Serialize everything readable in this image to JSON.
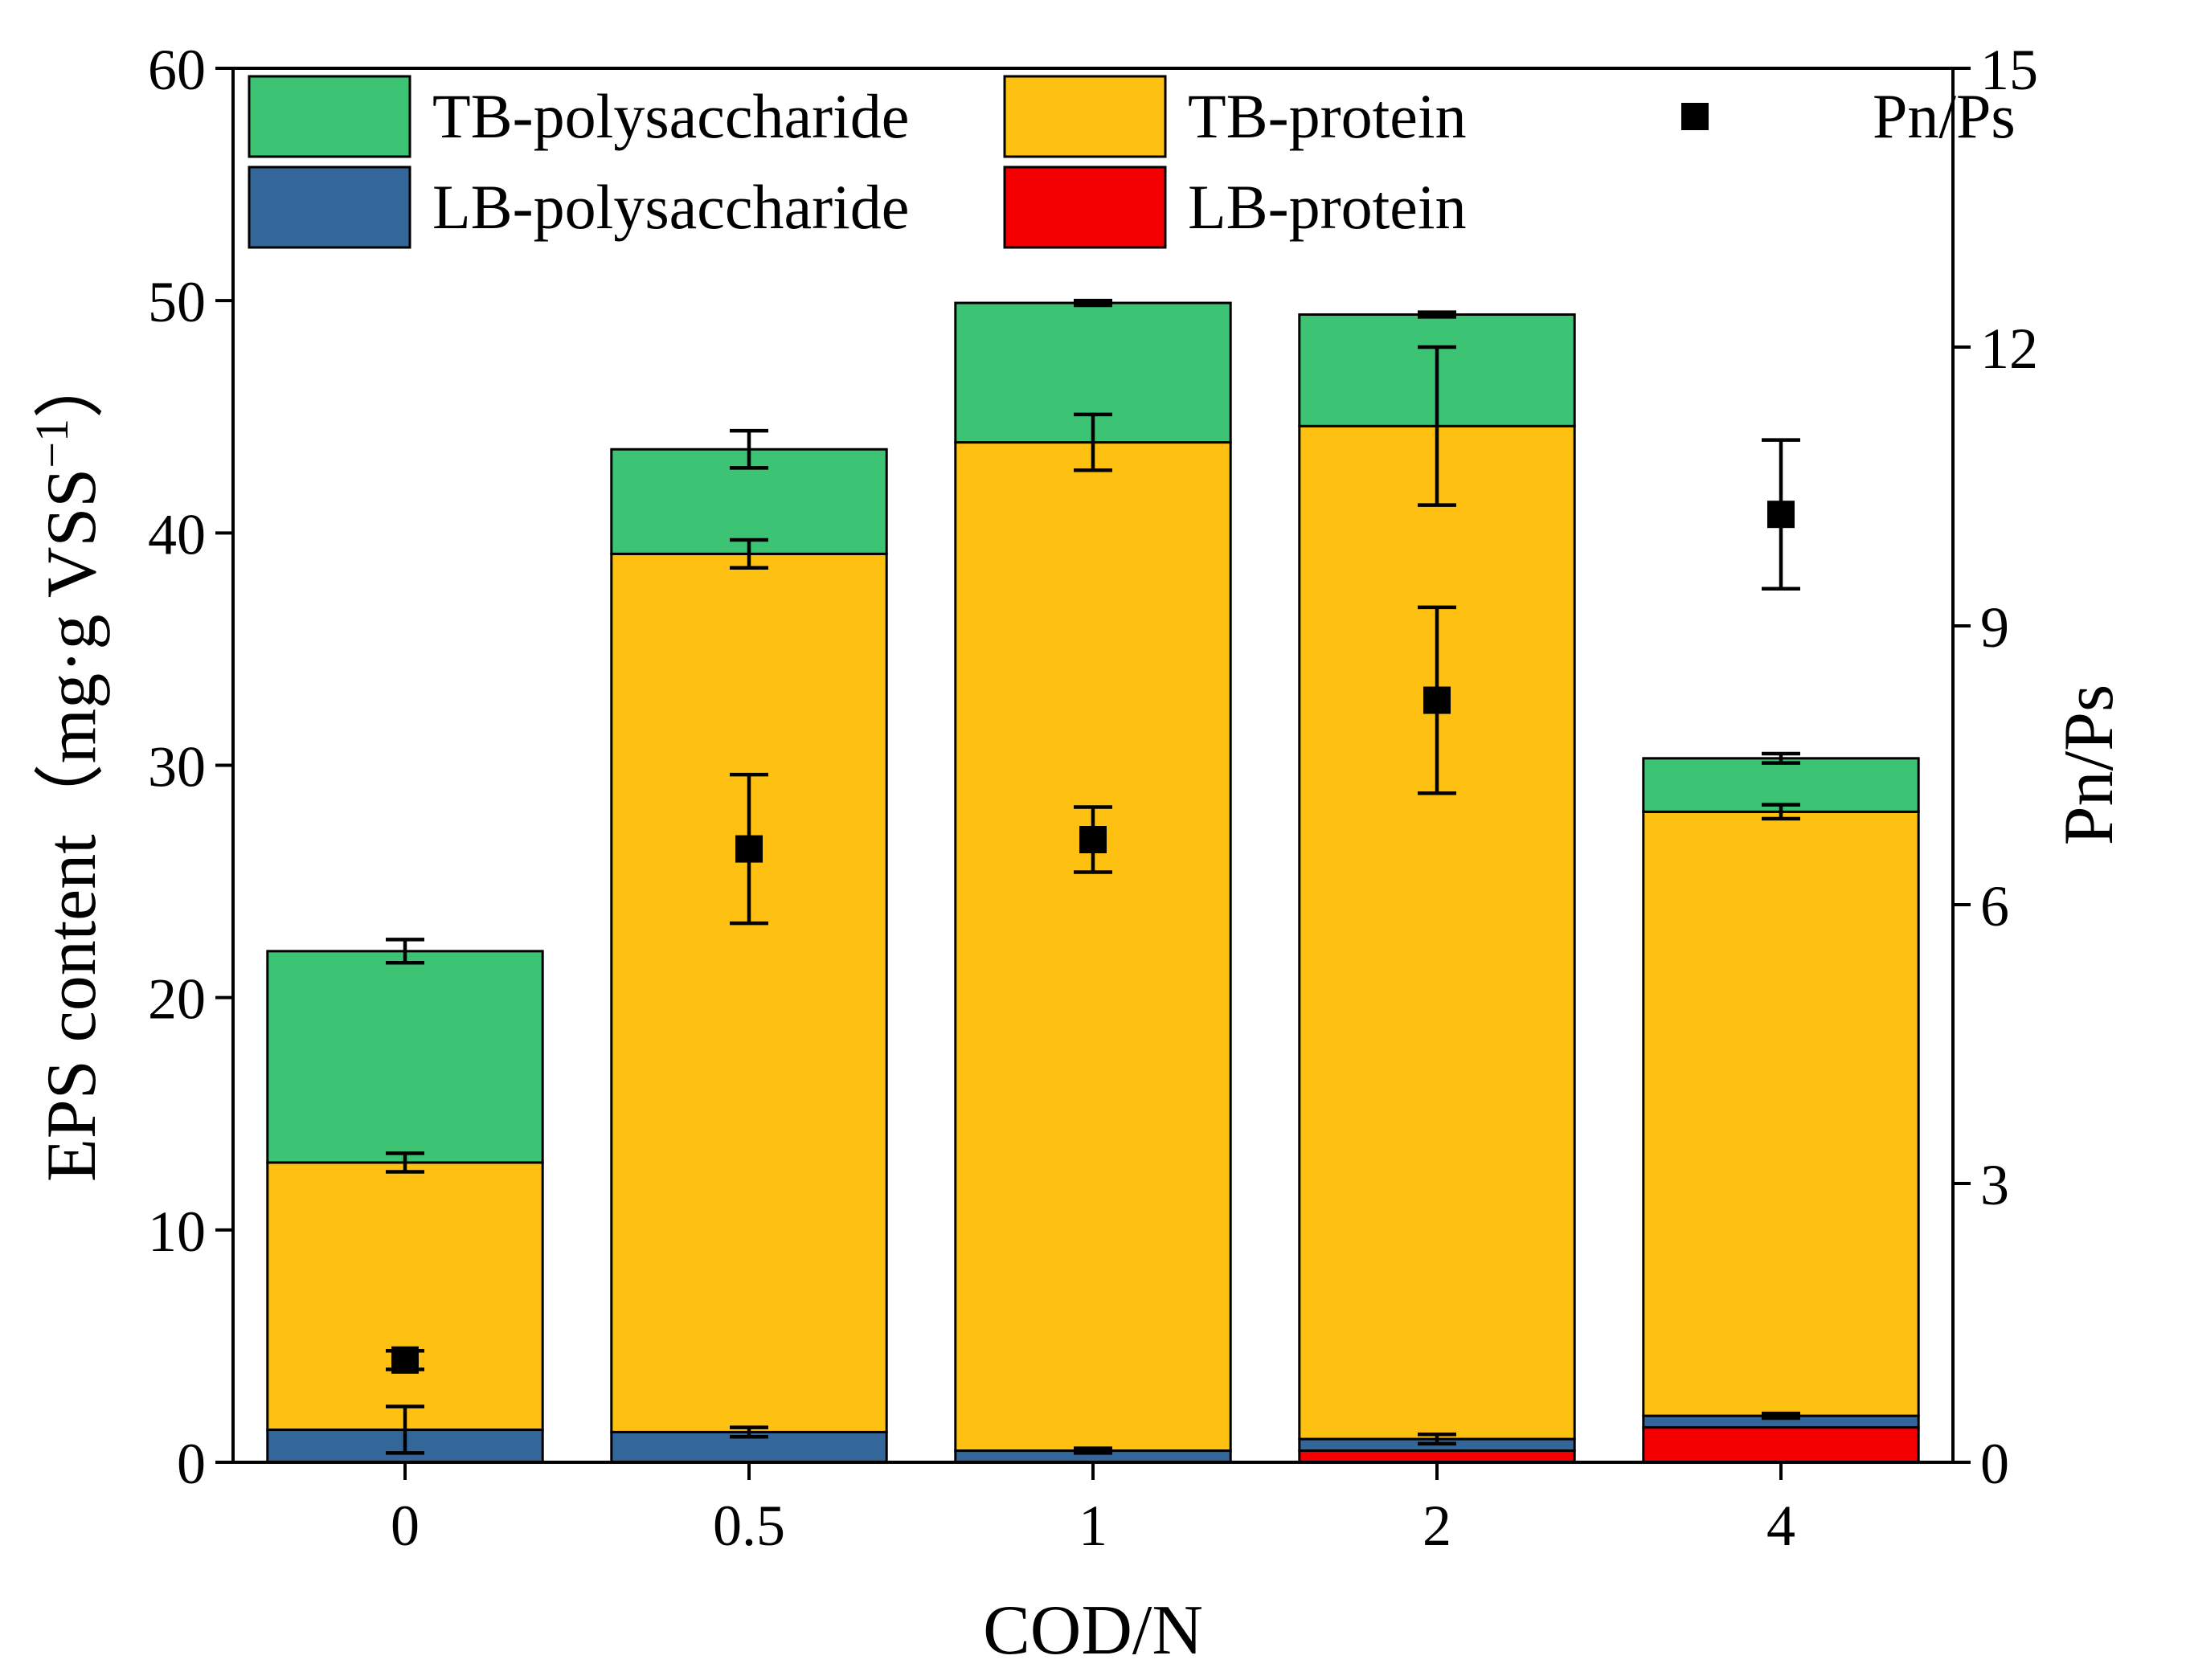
{
  "chart_data": {
    "type": "bar",
    "stacked": true,
    "secondary_type": "scatter",
    "categories": [
      "0",
      "0.5",
      "1",
      "2",
      "4"
    ],
    "xlabel": "COD/N",
    "ylabel": "EPS content（mg·g VSS⁻¹）",
    "ylabel_prefix": "EPS content（mg·g VSS",
    "ylabel_sup": "−1",
    "ylabel_suffix": "）",
    "ylabel_right": "Pn/Ps",
    "ylim": [
      0,
      60
    ],
    "ylim_right": [
      0,
      15
    ],
    "yticks": [
      "0",
      "10",
      "20",
      "30",
      "40",
      "50",
      "60"
    ],
    "yticks_right": [
      "0",
      "3",
      "6",
      "9",
      "12",
      "15"
    ],
    "series": [
      {
        "name": "LB-protein",
        "color": "#f50000",
        "values": [
          0,
          0,
          0,
          0.5,
          1.5
        ],
        "errors": [
          0,
          0,
          0,
          0,
          0
        ]
      },
      {
        "name": "LB-polysaccharide",
        "color": "#336699",
        "values": [
          1.4,
          1.3,
          0.5,
          0.5,
          0.5
        ],
        "errors": [
          1.0,
          0.2,
          0.1,
          0.2,
          0.1
        ]
      },
      {
        "name": "TB-protein",
        "color": "#fec112",
        "values": [
          11.5,
          37.8,
          43.4,
          43.6,
          26.0
        ],
        "errors": [
          0.4,
          0.6,
          1.2,
          3.4,
          0.3
        ]
      },
      {
        "name": "TB-polysaccharide",
        "color": "#3cc373",
        "values": [
          9.1,
          4.5,
          6.0,
          4.8,
          2.3
        ],
        "errors": [
          0.5,
          0.8,
          0.1,
          0.1,
          0.2
        ]
      }
    ],
    "ratio_series": {
      "name": "Pn/Ps",
      "color": "#000000",
      "axis": "right",
      "values": [
        1.1,
        6.6,
        6.7,
        8.2,
        10.2
      ],
      "errors": [
        0.1,
        0.8,
        0.35,
        1.0,
        0.8
      ]
    },
    "legend": {
      "placement": "top-left inside",
      "order": [
        "TB-polysaccharide",
        "TB-protein",
        "Pn/Ps",
        "LB-polysaccharide",
        "LB-protein"
      ]
    }
  }
}
